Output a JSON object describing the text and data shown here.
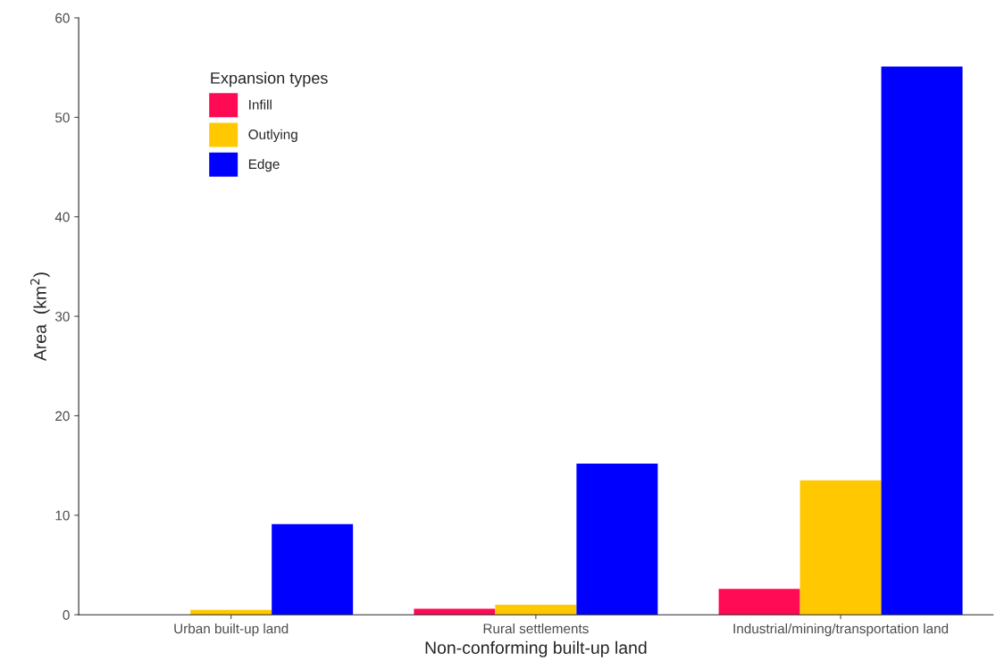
{
  "chart_data": {
    "type": "bar",
    "xlabel": "Non-conforming built-up land",
    "ylabel": "Area  (km$^{2}$)",
    "categories": [
      "Urban built-up land",
      "Rural settlements",
      "Industrial/mining/transportation land"
    ],
    "series": [
      {
        "name": "Infill",
        "color": "#ff0a54",
        "values": [
          0,
          0.6,
          2.6
        ]
      },
      {
        "name": "Outlying",
        "color": "#ffc800",
        "values": [
          0.5,
          1.0,
          13.5
        ]
      },
      {
        "name": "Edge",
        "color": "#0000ff",
        "values": [
          9.1,
          15.2,
          55.1
        ]
      }
    ],
    "legend_title": "Expansion types",
    "legend": "top left",
    "ylim": [
      0,
      60
    ],
    "yticks": [
      0,
      10,
      20,
      30,
      40,
      50,
      60
    ],
    "grid": false
  }
}
